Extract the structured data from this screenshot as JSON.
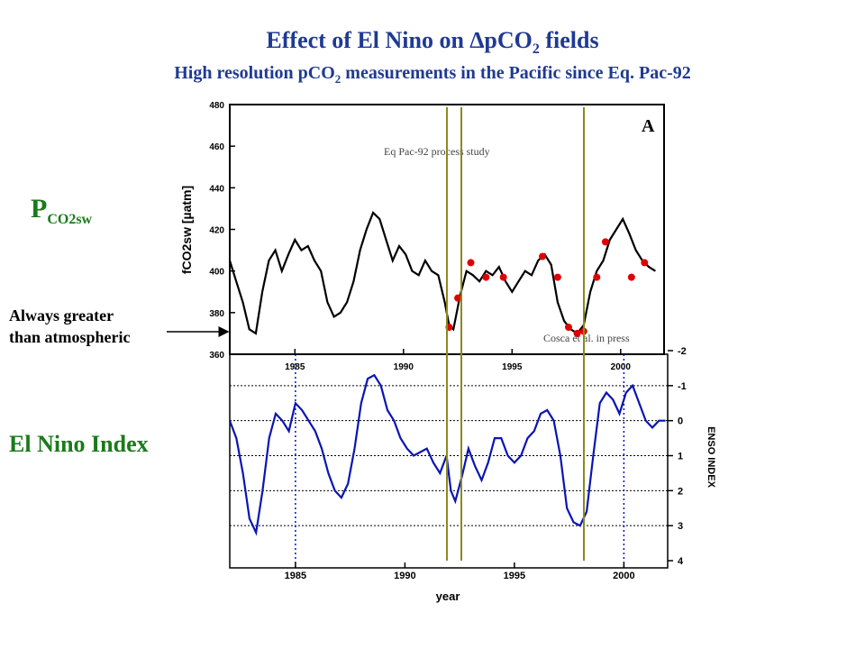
{
  "title": {
    "prefix": "Effect of El Nino on ",
    "delta": "∆",
    "pco2_p": "pCO",
    "pco2_sub": "2",
    "suffix": " fields"
  },
  "subtitle": {
    "prefix": "High resolution pCO",
    "sub": "2",
    "suffix": " measurements in the Pacific since Eq. Pac-92"
  },
  "labels": {
    "pco2_main": "P",
    "pco2_sub": "CO2sw",
    "always_line1": "Always greater",
    "always_line2": "than atmospheric",
    "elnino": "El Nino Index"
  },
  "colors": {
    "title": "#1f3a93",
    "side_label": "#1a7a1a",
    "top_line": "#000000",
    "points": "#e00000",
    "index_line": "#0a14b4",
    "markers": "#8a8a1e"
  },
  "chart_data": [
    {
      "type": "line",
      "panel_label": "A",
      "ylabel": "fCO2sw [µatm]",
      "ylim": [
        360,
        480
      ],
      "yticks": [
        360,
        380,
        400,
        420,
        440,
        460,
        480
      ],
      "xlim": [
        1982,
        2002
      ],
      "xticks": [
        1985,
        1990,
        1995,
        2000
      ],
      "annotations": [
        "Eq Pac-92 process study",
        "Cosca et al. in press"
      ],
      "series": [
        {
          "x": [
            1982.0,
            1982.3,
            1982.6,
            1982.9,
            1983.2,
            1983.5,
            1983.8,
            1984.1,
            1984.4,
            1984.7,
            1985.0,
            1985.3,
            1985.6,
            1985.9,
            1986.2,
            1986.5,
            1986.8,
            1987.1,
            1987.4,
            1987.7,
            1988.0,
            1988.3,
            1988.6,
            1988.9,
            1989.2,
            1989.5,
            1989.8,
            1990.1,
            1990.4,
            1990.7,
            1991.0,
            1991.3,
            1991.6,
            1991.9,
            1992.1,
            1992.3,
            1992.6,
            1992.9,
            1993.2,
            1993.5,
            1993.8,
            1994.1,
            1994.4,
            1994.7,
            1995.0,
            1995.3,
            1995.6,
            1995.9,
            1996.2,
            1996.5,
            1996.8,
            1997.1,
            1997.4,
            1997.7,
            1998.0,
            1998.3,
            1998.6,
            1998.9,
            1999.2,
            1999.5,
            1999.8,
            2000.1,
            2000.4,
            2000.7,
            2001.0,
            2001.3,
            2001.6
          ],
          "y": [
            405,
            395,
            385,
            372,
            370,
            390,
            405,
            410,
            400,
            408,
            415,
            410,
            412,
            405,
            400,
            385,
            378,
            380,
            385,
            395,
            410,
            420,
            428,
            425,
            415,
            405,
            412,
            408,
            400,
            398,
            405,
            400,
            398,
            385,
            374,
            372,
            388,
            400,
            398,
            395,
            400,
            398,
            402,
            395,
            390,
            395,
            400,
            398,
            405,
            408,
            403,
            385,
            376,
            372,
            370,
            374,
            390,
            400,
            405,
            415,
            420,
            425,
            418,
            410,
            405,
            402,
            400
          ]
        },
        {
          "name": "Cosca et al. in press",
          "type": "scatter",
          "x": [
            1992.1,
            1992.5,
            1993.1,
            1993.8,
            1994.6,
            1996.4,
            1997.1,
            1997.6,
            1998.0,
            1998.3,
            1998.9,
            1999.3,
            2000.5,
            2001.1
          ],
          "y": [
            373,
            387,
            404,
            397,
            397,
            407,
            397,
            373,
            370,
            371,
            397,
            414,
            397,
            404
          ]
        }
      ]
    },
    {
      "type": "line",
      "xlabel": "year",
      "ylabel": "ENSO INDEX",
      "ylim": [
        -2,
        4
      ],
      "y_inverted": true,
      "yticks": [
        -2,
        -1,
        0,
        1,
        2,
        3,
        4
      ],
      "xlim": [
        1982,
        2002
      ],
      "xticks": [
        1985,
        1990,
        1995,
        2000
      ],
      "series": [
        {
          "x": [
            1982.0,
            1982.3,
            1982.6,
            1982.9,
            1983.2,
            1983.5,
            1983.8,
            1984.1,
            1984.4,
            1984.7,
            1985.0,
            1985.3,
            1985.6,
            1985.9,
            1986.2,
            1986.5,
            1986.8,
            1987.1,
            1987.4,
            1987.7,
            1988.0,
            1988.3,
            1988.6,
            1988.9,
            1989.2,
            1989.5,
            1989.8,
            1990.1,
            1990.4,
            1990.7,
            1991.0,
            1991.3,
            1991.6,
            1991.9,
            1992.1,
            1992.3,
            1992.6,
            1992.9,
            1993.2,
            1993.5,
            1993.8,
            1994.1,
            1994.4,
            1994.7,
            1995.0,
            1995.3,
            1995.6,
            1995.9,
            1996.2,
            1996.5,
            1996.8,
            1997.1,
            1997.4,
            1997.7,
            1998.0,
            1998.3,
            1998.6,
            1998.9,
            1999.2,
            1999.5,
            1999.8,
            2000.1,
            2000.4,
            2000.7,
            2001.0,
            2001.3,
            2001.6,
            2001.9
          ],
          "y": [
            0.0,
            0.5,
            1.5,
            2.8,
            3.2,
            2.0,
            0.5,
            -0.2,
            0.0,
            0.3,
            -0.5,
            -0.3,
            0.0,
            0.3,
            0.8,
            1.5,
            2.0,
            2.2,
            1.8,
            0.8,
            -0.5,
            -1.2,
            -1.3,
            -1.0,
            -0.3,
            0.0,
            0.5,
            0.8,
            1.0,
            0.9,
            0.8,
            1.2,
            1.5,
            1.0,
            2.0,
            2.3,
            1.6,
            0.8,
            1.3,
            1.7,
            1.2,
            0.5,
            0.5,
            1.0,
            1.2,
            1.0,
            0.5,
            0.3,
            -0.2,
            -0.3,
            0.0,
            1.0,
            2.5,
            2.9,
            3.0,
            2.6,
            1.0,
            -0.5,
            -0.8,
            -0.6,
            -0.2,
            -0.8,
            -1.0,
            -0.5,
            0.0,
            0.2,
            0.0,
            0.0
          ]
        }
      ]
    }
  ]
}
